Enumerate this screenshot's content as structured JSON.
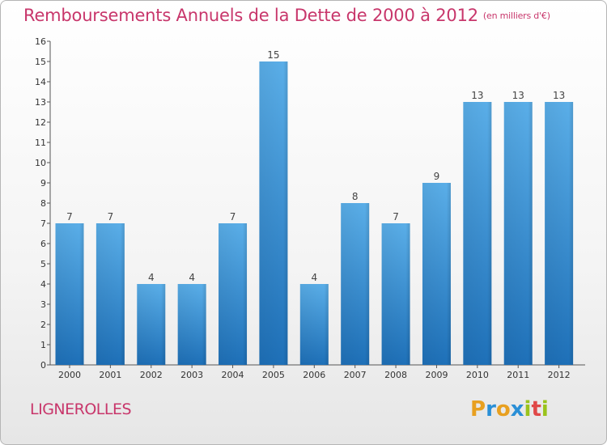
{
  "title": "Remboursements Annuels de la Dette de 2000 à 2012",
  "subtitle": "(en milliers d'€)",
  "commune": "LIGNEROLLES",
  "logo": {
    "letters": [
      "P",
      "r",
      "o",
      "x",
      "i",
      "t",
      "i"
    ],
    "colors": [
      "#e8a020",
      "#2a8fd6",
      "#e8a020",
      "#2a8fd6",
      "#9ac31c",
      "#e04848",
      "#9ac31c"
    ]
  },
  "colors": {
    "accent": "#c8366b",
    "bar_top": "#5aaee8",
    "bar_bottom": "#1e70b8"
  },
  "chart_data": {
    "type": "bar",
    "categories": [
      "2000",
      "2001",
      "2002",
      "2003",
      "2004",
      "2005",
      "2006",
      "2007",
      "2008",
      "2009",
      "2010",
      "2011",
      "2012"
    ],
    "values": [
      7,
      7,
      4,
      4,
      7,
      15,
      4,
      8,
      7,
      9,
      13,
      13,
      13
    ],
    "data_labels": [
      "7",
      "7",
      "4",
      "4",
      "7",
      "15",
      "4",
      "8",
      "7",
      "9",
      "13",
      "13",
      "13"
    ],
    "yticks": [
      0,
      1,
      2,
      3,
      4,
      5,
      6,
      7,
      8,
      9,
      10,
      11,
      12,
      13,
      14,
      15,
      16
    ],
    "ylim": [
      0,
      16
    ],
    "xlabel": "",
    "ylabel": "",
    "grid": false,
    "legend": "none"
  }
}
